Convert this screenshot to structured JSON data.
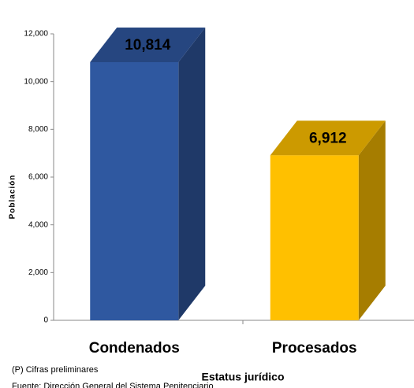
{
  "chart_data": {
    "type": "bar3d",
    "categories": [
      "Condenados",
      "Procesados"
    ],
    "values": [
      10814,
      6912
    ],
    "value_labels": [
      "10,814",
      "6,912"
    ],
    "colors": [
      "#2f58a0",
      "#ffc000"
    ],
    "ylabel": "Población",
    "xlabel": "Estatus jurídico",
    "ylim": [
      0,
      12000
    ],
    "yticks": [
      0,
      {
        "value": 2000,
        "label": "2,000"
      },
      {
        "value": 4000,
        "label": "4,000"
      },
      {
        "value": 6000,
        "label": "6,000"
      },
      {
        "value": 8000,
        "label": "8,000"
      },
      {
        "value": 10000,
        "label": "10,000"
      },
      {
        "value": 12000,
        "label": "12,000"
      }
    ],
    "notes": [
      "(P) Cifras preliminares",
      "Fuente: Dirección General del Sistema Penitenciario"
    ]
  }
}
